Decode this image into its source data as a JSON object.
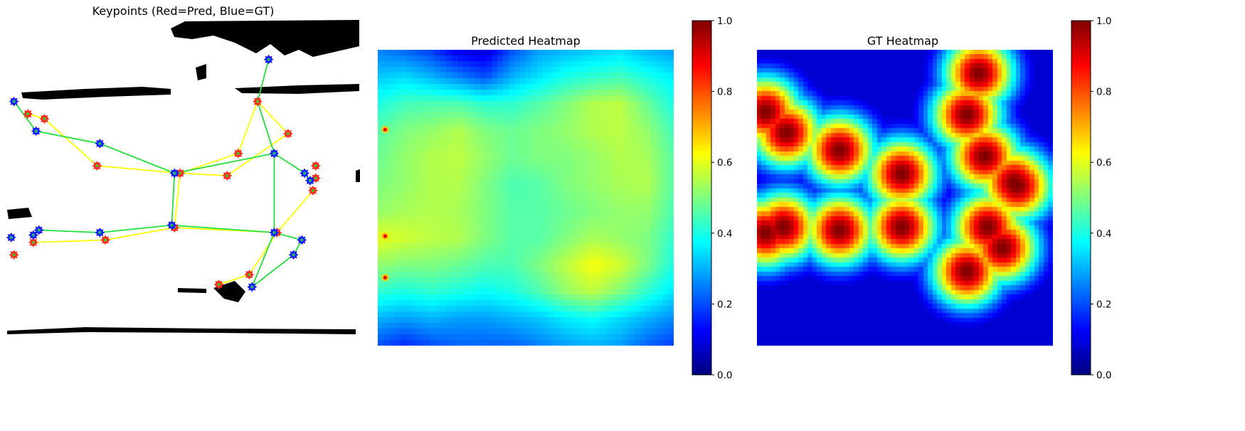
{
  "panels": {
    "keypoints": {
      "title": "Keypoints (Red=Pred, Blue=GT)"
    },
    "predicted": {
      "title": "Predicted Heatmap"
    },
    "gt": {
      "title": "GT Heatmap"
    }
  },
  "colors": {
    "pred_marker": "#ff2a1a",
    "gt_marker": "#1a1aff",
    "pred_line": "#ffff00",
    "gt_line": "#22e03a",
    "colormap": "jet"
  },
  "chart_data": [
    {
      "type": "scatter",
      "title": "Keypoints (Red=Pred, Blue=GT)",
      "axes": "off",
      "x_range": [
        0,
        128
      ],
      "y_range": [
        0,
        128
      ],
      "series": [
        {
          "name": "Pred",
          "color": "#ff2a1a",
          "points": [
            [
              91,
              33
            ],
            [
              102,
              46
            ],
            [
              84,
              54
            ],
            [
              63,
              62
            ],
            [
              80,
              63
            ],
            [
              33,
              59
            ],
            [
              14,
              40
            ],
            [
              8,
              38
            ],
            [
              61,
              84
            ],
            [
              98,
              86
            ],
            [
              36,
              89
            ],
            [
              10,
              90
            ],
            [
              3,
              95
            ],
            [
              77,
              107
            ],
            [
              88,
              103
            ],
            [
              112,
              59
            ],
            [
              112,
              64
            ],
            [
              111,
              69
            ]
          ]
        },
        {
          "name": "GT",
          "color": "#1a1aff",
          "points": [
            [
              95,
              16
            ],
            [
              3,
              33
            ],
            [
              11,
              45
            ],
            [
              34,
              50
            ],
            [
              97,
              54
            ],
            [
              61,
              62
            ],
            [
              108,
              62
            ],
            [
              110,
              65
            ],
            [
              60,
              83
            ],
            [
              34,
              86
            ],
            [
              97,
              86
            ],
            [
              107,
              89
            ],
            [
              104,
              95
            ],
            [
              12,
              85
            ],
            [
              10,
              87
            ],
            [
              2,
              88
            ],
            [
              89,
              108
            ]
          ]
        }
      ],
      "skeleton_pred": [
        [
          [
            14,
            40
          ],
          [
            33,
            59
          ],
          [
            63,
            62
          ],
          [
            80,
            63
          ],
          [
            102,
            46
          ],
          [
            91,
            33
          ],
          [
            84,
            54
          ],
          [
            63,
            62
          ],
          [
            61,
            84
          ],
          [
            98,
            86
          ],
          [
            88,
            103
          ],
          [
            77,
            107
          ]
        ],
        [
          [
            8,
            38
          ],
          [
            14,
            40
          ]
        ],
        [
          [
            61,
            84
          ],
          [
            36,
            89
          ],
          [
            10,
            90
          ]
        ],
        [
          [
            98,
            86
          ],
          [
            111,
            69
          ]
        ]
      ],
      "skeleton_gt": [
        [
          [
            3,
            33
          ],
          [
            11,
            45
          ],
          [
            34,
            50
          ],
          [
            61,
            62
          ],
          [
            97,
            54
          ],
          [
            91,
            33
          ],
          [
            95,
            16
          ]
        ],
        [
          [
            61,
            62
          ],
          [
            60,
            83
          ],
          [
            34,
            86
          ],
          [
            12,
            85
          ]
        ],
        [
          [
            97,
            54
          ],
          [
            97,
            86
          ],
          [
            89,
            108
          ]
        ],
        [
          [
            60,
            83
          ],
          [
            97,
            86
          ],
          [
            107,
            89
          ],
          [
            104,
            95
          ],
          [
            89,
            108
          ]
        ],
        [
          [
            97,
            54
          ],
          [
            108,
            62
          ],
          [
            110,
            65
          ]
        ]
      ]
    },
    {
      "type": "heatmap",
      "title": "Predicted Heatmap",
      "colormap": "jet",
      "vmin": 0,
      "vmax": 1,
      "colorbar_ticks": [
        0.0,
        0.2,
        0.4,
        0.6,
        0.8,
        1.0
      ],
      "colorbar_tick_labels": [
        "0.0",
        "0.2",
        "0.4",
        "0.6",
        "0.8",
        "1.0"
      ],
      "grid_size": 12,
      "values": [
        [
          0.25,
          0.22,
          0.18,
          0.1,
          0.08,
          0.2,
          0.28,
          0.3,
          0.32,
          0.34,
          0.3,
          0.28
        ],
        [
          0.32,
          0.34,
          0.3,
          0.25,
          0.2,
          0.3,
          0.35,
          0.4,
          0.42,
          0.44,
          0.4,
          0.36
        ],
        [
          0.4,
          0.44,
          0.45,
          0.45,
          0.42,
          0.42,
          0.46,
          0.5,
          0.55,
          0.56,
          0.48,
          0.4
        ],
        [
          0.46,
          0.5,
          0.52,
          0.55,
          0.5,
          0.48,
          0.5,
          0.52,
          0.55,
          0.56,
          0.52,
          0.44
        ],
        [
          0.48,
          0.52,
          0.55,
          0.56,
          0.52,
          0.48,
          0.5,
          0.5,
          0.52,
          0.55,
          0.54,
          0.46
        ],
        [
          0.5,
          0.52,
          0.55,
          0.55,
          0.5,
          0.45,
          0.46,
          0.5,
          0.52,
          0.54,
          0.55,
          0.46
        ],
        [
          0.52,
          0.54,
          0.55,
          0.54,
          0.5,
          0.46,
          0.46,
          0.48,
          0.5,
          0.52,
          0.52,
          0.45
        ],
        [
          0.6,
          0.58,
          0.56,
          0.55,
          0.5,
          0.46,
          0.46,
          0.5,
          0.54,
          0.52,
          0.5,
          0.42
        ],
        [
          0.52,
          0.5,
          0.5,
          0.48,
          0.45,
          0.45,
          0.5,
          0.56,
          0.62,
          0.58,
          0.5,
          0.4
        ],
        [
          0.42,
          0.4,
          0.42,
          0.4,
          0.38,
          0.4,
          0.45,
          0.52,
          0.56,
          0.5,
          0.42,
          0.35
        ],
        [
          0.3,
          0.28,
          0.3,
          0.28,
          0.28,
          0.3,
          0.32,
          0.36,
          0.38,
          0.34,
          0.3,
          0.26
        ],
        [
          0.2,
          0.16,
          0.2,
          0.22,
          0.22,
          0.22,
          0.25,
          0.28,
          0.3,
          0.28,
          0.22,
          0.18
        ]
      ],
      "hot_spots": [
        [
          0.025,
          0.27
        ],
        [
          0.025,
          0.63
        ],
        [
          0.025,
          0.77
        ]
      ]
    },
    {
      "type": "heatmap",
      "title": "GT Heatmap",
      "colormap": "jet",
      "vmin": 0,
      "vmax": 1,
      "colorbar_ticks": [
        0.0,
        0.2,
        0.4,
        0.6,
        0.8,
        1.0
      ],
      "colorbar_tick_labels": [
        "0.0",
        "0.2",
        "0.4",
        "0.6",
        "0.8",
        "1.0"
      ],
      "grid_size": 64,
      "background": 0.08,
      "peaks": [
        [
          0.03,
          0.21
        ],
        [
          0.1,
          0.28
        ],
        [
          0.28,
          0.34
        ],
        [
          0.49,
          0.42
        ],
        [
          0.03,
          0.62
        ],
        [
          0.09,
          0.6
        ],
        [
          0.28,
          0.61
        ],
        [
          0.49,
          0.6
        ],
        [
          0.75,
          0.08
        ],
        [
          0.71,
          0.22
        ],
        [
          0.77,
          0.36
        ],
        [
          0.87,
          0.45
        ],
        [
          0.88,
          0.46
        ],
        [
          0.78,
          0.6
        ],
        [
          0.83,
          0.67
        ],
        [
          0.71,
          0.75
        ]
      ],
      "peak_sigma": 0.085
    }
  ]
}
